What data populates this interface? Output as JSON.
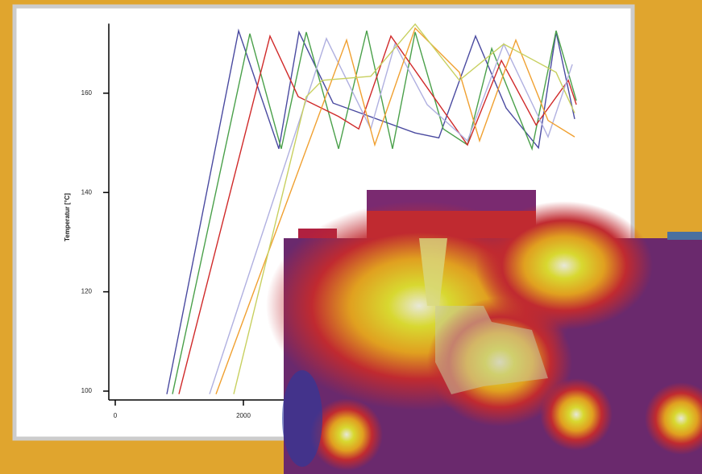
{
  "chart_data": {
    "type": "line",
    "y_label": "Temperatur [°C]",
    "xlim": [
      0,
      7400
    ],
    "xticks": [
      0,
      2000
    ],
    "ylim": [
      98,
      174
    ],
    "yticks": [
      100,
      120,
      140,
      160
    ],
    "series": [
      {
        "color": "#4a4aa0",
        "x": [
          805,
          1925,
          2554,
          2868,
          3400,
          4680,
          5050,
          5623,
          6100,
          6605,
          6881,
          7170
        ],
        "values": [
          99.4,
          172.6,
          148.8,
          172.3,
          158,
          152,
          151,
          171.5,
          157,
          149,
          172.3,
          154.8
        ]
      },
      {
        "color": "#4aa04a",
        "x": [
          893,
          2101,
          2591,
          2981,
          3485,
          3925,
          4327,
          4680,
          5120,
          5497,
          5875,
          6504,
          6881,
          7196
        ],
        "values": [
          99.4,
          172,
          148.8,
          172.3,
          148.8,
          172.6,
          148.8,
          172.3,
          152.8,
          149.6,
          169,
          148.8,
          172.6,
          158.5
        ]
      },
      {
        "color": "#d02a2a",
        "x": [
          994,
          2415,
          2855,
          3485,
          3800,
          4302,
          4743,
          5497,
          6026,
          6567,
          7070,
          7196
        ],
        "values": [
          99.4,
          171.5,
          159.3,
          155.3,
          152.8,
          171.5,
          163.4,
          149.6,
          166.6,
          153.6,
          162.6,
          157.7
        ]
      },
      {
        "color": "#b0b0e0",
        "x": [
          1472,
          3296,
          3988,
          4365,
          4868,
          5497,
          6063,
          6755,
          7133
        ],
        "values": [
          99.4,
          171,
          152.8,
          169.9,
          157.7,
          150.4,
          169.9,
          151.2,
          165.8
        ]
      },
      {
        "color": "#f0a030",
        "x": [
          1572,
          3610,
          4050,
          4680,
          5371,
          5686,
          6252,
          6755,
          7170
        ],
        "values": [
          99.4,
          170.7,
          149.6,
          173.1,
          164.2,
          150.4,
          170.7,
          154.5,
          151.2
        ]
      },
      {
        "color": "#c8d060",
        "x": [
          1849,
          2981,
          3233,
          3988,
          4680,
          5371,
          6063,
          6881,
          7170
        ],
        "values": [
          99.4,
          159.3,
          162.6,
          163.4,
          173.9,
          162.6,
          169.9,
          164.2,
          156
        ]
      }
    ]
  }
}
